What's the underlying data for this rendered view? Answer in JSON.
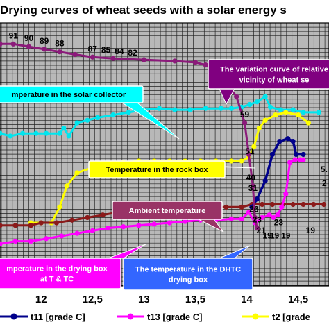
{
  "chart_data": {
    "type": "line",
    "title": "Drying curves of wheat seeds with a solar energy s",
    "xlim": [
      11.6,
      14.8
    ],
    "ylim": [
      0,
      100
    ],
    "x_ticks": [
      "12",
      "12,5",
      "13",
      "13,5",
      "14",
      "14,5"
    ],
    "x_tick_values": [
      12,
      12.5,
      13,
      13.5,
      14,
      14.5
    ],
    "grid": true,
    "legend_position": "bottom",
    "series": [
      {
        "id": "humidity",
        "color": "#8b1a7a",
        "marker": true,
        "points": [
          [
            11.6,
            92
          ],
          [
            11.73,
            92
          ],
          [
            11.88,
            91
          ],
          [
            12.03,
            90
          ],
          [
            12.18,
            89
          ],
          [
            12.33,
            88
          ],
          [
            12.5,
            87
          ],
          [
            12.7,
            86.5
          ],
          [
            13.0,
            86
          ],
          [
            13.3,
            85.5
          ],
          [
            13.5,
            85
          ],
          [
            13.6,
            84
          ],
          [
            13.75,
            80
          ],
          [
            13.9,
            72
          ],
          [
            13.98,
            62
          ],
          [
            14.02,
            50
          ],
          [
            14.06,
            38
          ],
          [
            14.08,
            26
          ],
          [
            14.1,
            22
          ]
        ],
        "labels": [
          {
            "x": 11.73,
            "y": 92,
            "text": "91"
          },
          {
            "x": 11.88,
            "y": 91,
            "text": "90"
          },
          {
            "x": 12.03,
            "y": 90,
            "text": "89"
          },
          {
            "x": 12.18,
            "y": 89,
            "text": "88"
          },
          {
            "x": 12.5,
            "y": 87,
            "text": "87"
          },
          {
            "x": 12.63,
            "y": 86.5,
            "text": "85"
          },
          {
            "x": 12.76,
            "y": 86,
            "text": "84"
          },
          {
            "x": 12.89,
            "y": 85.5,
            "text": "82"
          },
          {
            "x": 13.98,
            "y": 62,
            "text": "59"
          },
          {
            "x": 14.03,
            "y": 48,
            "text": "51"
          },
          {
            "x": 14.04,
            "y": 38,
            "text": "40"
          },
          {
            "x": 14.06,
            "y": 34,
            "text": "31"
          },
          {
            "x": 14.07,
            "y": 26,
            "text": "26"
          },
          {
            "x": 14.1,
            "y": 22,
            "text": "23"
          },
          {
            "x": 14.14,
            "y": 18,
            "text": "21"
          },
          {
            "x": 14.2,
            "y": 16,
            "text": "19"
          },
          {
            "x": 14.27,
            "y": 16,
            "text": "19"
          },
          {
            "x": 14.31,
            "y": 21,
            "text": "23"
          },
          {
            "x": 14.38,
            "y": 16,
            "text": "19"
          },
          {
            "x": 14.62,
            "y": 18,
            "text": "19"
          }
        ]
      },
      {
        "id": "collector",
        "color": "#00e5ee",
        "marker": true,
        "points": [
          [
            11.6,
            58
          ],
          [
            11.7,
            57
          ],
          [
            11.82,
            58
          ],
          [
            11.95,
            58
          ],
          [
            12.05,
            58
          ],
          [
            12.18,
            58
          ],
          [
            12.22,
            60
          ],
          [
            12.27,
            57
          ],
          [
            12.35,
            62
          ],
          [
            12.45,
            63
          ],
          [
            12.55,
            64
          ],
          [
            12.7,
            65
          ],
          [
            12.85,
            66
          ],
          [
            13.0,
            67
          ],
          [
            13.15,
            67.5
          ],
          [
            13.3,
            67
          ],
          [
            13.45,
            67
          ],
          [
            13.6,
            67.5
          ],
          [
            13.75,
            67.5
          ],
          [
            13.85,
            67.5
          ],
          [
            13.95,
            68
          ],
          [
            14.03,
            69
          ],
          [
            14.1,
            70
          ],
          [
            14.18,
            72
          ],
          [
            14.23,
            68
          ],
          [
            14.33,
            67
          ],
          [
            14.45,
            67
          ],
          [
            14.55,
            66
          ],
          [
            14.7,
            66
          ]
        ]
      },
      {
        "id": "rockbox",
        "color": "#ffff00",
        "marker": true,
        "points": [
          [
            11.9,
            24
          ],
          [
            12.0,
            24
          ],
          [
            12.1,
            24
          ],
          [
            12.18,
            30
          ],
          [
            12.25,
            38
          ],
          [
            12.35,
            43
          ],
          [
            12.5,
            45
          ],
          [
            12.65,
            46
          ],
          [
            12.8,
            47
          ],
          [
            12.95,
            47.5
          ],
          [
            13.1,
            47.5
          ],
          [
            13.25,
            47.5
          ],
          [
            13.4,
            47.5
          ],
          [
            13.55,
            47.5
          ],
          [
            13.7,
            47.5
          ],
          [
            13.85,
            47.5
          ],
          [
            13.95,
            47.5
          ],
          [
            14.02,
            49
          ],
          [
            14.07,
            53
          ],
          [
            14.12,
            60
          ],
          [
            14.18,
            63
          ],
          [
            14.28,
            65
          ],
          [
            14.38,
            66
          ],
          [
            14.5,
            65
          ],
          [
            14.6,
            62
          ]
        ]
      },
      {
        "id": "ambient",
        "color": "#8b1a1a",
        "marker": true,
        "points": [
          [
            11.6,
            23
          ],
          [
            11.75,
            23
          ],
          [
            11.9,
            23
          ],
          [
            12.0,
            24
          ],
          [
            12.15,
            24
          ],
          [
            12.3,
            25
          ],
          [
            12.45,
            26
          ],
          [
            12.6,
            27
          ],
          [
            12.75,
            28
          ],
          [
            12.9,
            28.5
          ],
          [
            13.05,
            29
          ],
          [
            13.2,
            29
          ],
          [
            13.35,
            29
          ],
          [
            13.5,
            29
          ],
          [
            13.65,
            30
          ],
          [
            13.8,
            30
          ],
          [
            13.95,
            30
          ],
          [
            14.05,
            31
          ],
          [
            14.15,
            31
          ],
          [
            14.25,
            31
          ],
          [
            14.35,
            31
          ],
          [
            14.45,
            31
          ],
          [
            14.55,
            31
          ],
          [
            14.65,
            31
          ],
          [
            14.75,
            31
          ]
        ]
      },
      {
        "id": "dhtc",
        "color": "#ff00ff",
        "marker": true,
        "points": [
          [
            11.6,
            16
          ],
          [
            11.75,
            17
          ],
          [
            11.9,
            17
          ],
          [
            12.05,
            18
          ],
          [
            12.2,
            19
          ],
          [
            12.35,
            20
          ],
          [
            12.5,
            21
          ],
          [
            12.65,
            22
          ],
          [
            12.8,
            22.5
          ],
          [
            12.95,
            23
          ],
          [
            13.1,
            23.5
          ],
          [
            13.25,
            24
          ],
          [
            13.4,
            24.5
          ],
          [
            13.55,
            25
          ],
          [
            13.7,
            25
          ],
          [
            13.85,
            25.5
          ],
          [
            13.95,
            25.5
          ],
          [
            14.02,
            28
          ],
          [
            14.08,
            24
          ],
          [
            14.15,
            26
          ],
          [
            14.22,
            27
          ],
          [
            14.26,
            26
          ],
          [
            14.3,
            27
          ],
          [
            14.34,
            30
          ],
          [
            14.38,
            35
          ],
          [
            14.42,
            47
          ],
          [
            14.47,
            48
          ],
          [
            14.52,
            48
          ],
          [
            14.55,
            48
          ]
        ]
      },
      {
        "id": "t11",
        "color": "#00008b",
        "marker": true,
        "points": [
          [
            14.05,
            30
          ],
          [
            14.1,
            33
          ],
          [
            14.18,
            40
          ],
          [
            14.25,
            50
          ],
          [
            14.32,
            55
          ],
          [
            14.4,
            56
          ],
          [
            14.45,
            55
          ],
          [
            14.48,
            50
          ],
          [
            14.55,
            50
          ]
        ]
      }
    ],
    "annotations": [
      {
        "id": "relative",
        "text": "The variation curve of relative\nvicinity of wheat se",
        "bg": "#800080",
        "fg": "#ffffff"
      },
      {
        "id": "collector",
        "text": "mperature in the solar collector",
        "bg": "#00ffff",
        "fg": "#000000"
      },
      {
        "id": "rockbox",
        "text": "Temperature in the rock box",
        "bg": "#ffff00",
        "fg": "#000000"
      },
      {
        "id": "ambient",
        "text": "Ambient temperature",
        "bg": "#993366",
        "fg": "#ffffff"
      },
      {
        "id": "dryingbox",
        "text": "mperature in the drying box\nat T & TC",
        "bg": "#ff00ff",
        "fg": "#ffffff"
      },
      {
        "id": "dhtc",
        "text": "The temperature in the DHTC\ndrying box",
        "bg": "#3366ff",
        "fg": "#ffffff"
      }
    ],
    "extra_labels": [
      {
        "text": "5.",
        "color": "#000000"
      },
      {
        "text": "2",
        "color": "#000000"
      }
    ],
    "legend": [
      {
        "name": "t11 [grade C]",
        "color": "#00008b"
      },
      {
        "name": "t13 [grade C]",
        "color": "#ff00ff"
      },
      {
        "name": "t2 [grade",
        "color": "#ffff00"
      }
    ]
  }
}
